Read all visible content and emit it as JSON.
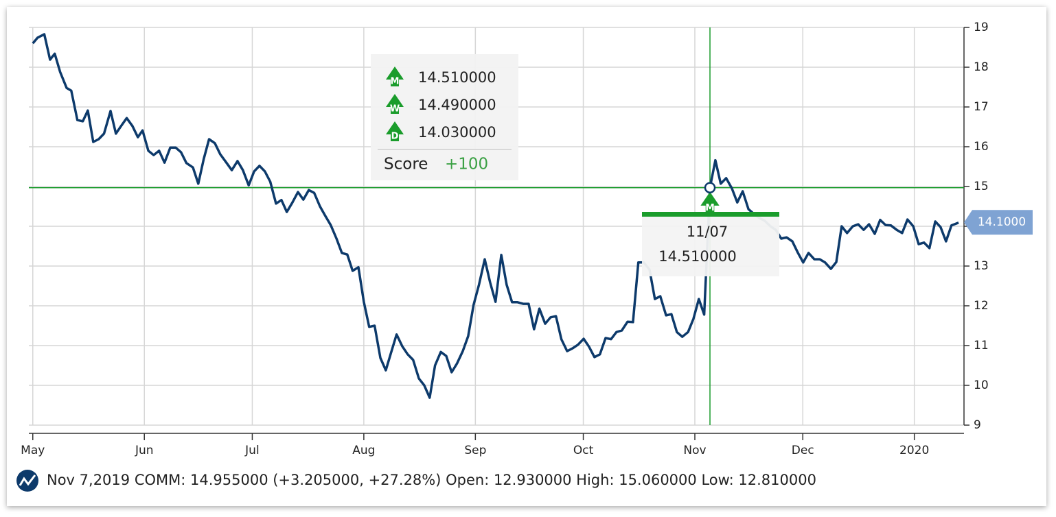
{
  "chart_data": {
    "type": "line",
    "x": [
      0,
      1.3,
      3.2,
      4.8,
      6.1,
      7.6,
      9.4,
      10.7,
      12.4,
      13.9,
      15.3,
      16.8,
      18.3,
      19.8,
      21.6,
      23.1,
      24.6,
      26.1,
      27.7,
      29.2,
      30.5,
      32.1,
      33.6,
      35.1,
      36.6,
      38.2,
      39.7,
      41.2,
      42.7,
      44.5,
      46.0,
      47.5,
      49.0,
      50.6,
      52.1,
      53.8,
      55.3,
      56.9,
      58.4,
      60.0,
      61.5,
      63.0,
      64.5,
      66.0,
      67.6,
      69.1,
      70.6,
      72.1,
      73.7,
      75.2,
      76.7,
      78.2,
      79.8,
      81.3,
      82.8,
      84.4,
      85.9,
      87.4,
      88.9,
      90.5,
      92.0,
      93.5,
      95.0,
      96.6,
      98.1,
      99.6,
      101.1,
      102.7,
      104.2,
      105.7,
      107.3,
      108.8,
      110.3,
      111.8,
      113.4,
      114.9,
      116.4,
      117.9,
      119.5,
      121.0,
      122.5,
      124.0,
      125.6,
      127.1,
      128.6,
      130.2,
      131.7,
      133.2,
      134.7,
      136.3,
      137.8,
      139.3,
      140.8,
      142.4,
      143.9,
      145.4,
      146.9,
      148.5,
      150.0,
      151.5,
      153.1,
      154.6,
      156.1,
      157.6,
      159.2,
      160.7,
      162.2,
      163.7,
      165.3,
      166.8,
      168.3,
      169.8,
      171.4,
      172.9,
      174.4,
      176.0,
      177.5,
      179.0,
      180.5,
      182.1,
      183.6,
      185.1,
      186.6,
      188.2,
      189.7,
      191.2,
      192.7,
      194.3,
      195.8,
      197.3,
      198.9,
      200.4,
      201.9,
      203.4,
      205.0,
      206.5,
      208.0,
      209.5,
      211.1,
      212.6,
      214.1,
      215.6,
      217.2,
      218.7,
      220.2,
      221.8,
      223.3,
      224.8,
      226.3,
      227.9,
      229.4,
      230.9,
      232.4,
      234.0,
      235.5,
      237.0,
      238.5,
      240.1,
      241.6,
      243.1,
      244.7,
      246.2,
      247.7,
      249.2,
      250.8,
      252.3,
      253.8,
      255.3,
      257.3
    ],
    "series": [
      {
        "color": "#0d3a6b",
        "values": [
          18.6,
          18.74,
          18.83,
          18.19,
          18.34,
          17.88,
          17.48,
          17.41,
          16.67,
          16.64,
          16.91,
          16.12,
          16.19,
          16.33,
          16.9,
          16.33,
          16.53,
          16.72,
          16.52,
          16.24,
          16.41,
          15.9,
          15.79,
          15.9,
          15.6,
          15.98,
          15.98,
          15.86,
          15.59,
          15.48,
          15.07,
          15.69,
          16.19,
          16.09,
          15.81,
          15.6,
          15.41,
          15.64,
          15.41,
          15.03,
          15.38,
          15.52,
          15.38,
          15.12,
          14.57,
          14.66,
          14.36,
          14.59,
          14.86,
          14.67,
          14.91,
          14.84,
          14.5,
          14.26,
          14.03,
          13.69,
          13.33,
          13.29,
          12.88,
          12.97,
          12.1,
          11.47,
          11.5,
          10.69,
          10.38,
          10.83,
          11.28,
          10.98,
          10.78,
          10.64,
          10.17,
          10.0,
          9.69,
          10.5,
          10.84,
          10.74,
          10.33,
          10.55,
          10.86,
          11.24,
          12.02,
          12.53,
          13.17,
          12.59,
          12.1,
          13.28,
          12.53,
          12.09,
          12.09,
          12.05,
          12.05,
          11.41,
          11.93,
          11.55,
          11.71,
          11.74,
          11.16,
          10.86,
          10.93,
          11.02,
          11.17,
          10.97,
          10.71,
          10.78,
          11.19,
          11.16,
          11.34,
          11.38,
          11.6,
          11.59,
          13.09,
          13.09,
          12.91,
          12.17,
          12.24,
          11.76,
          11.79,
          11.34,
          11.22,
          11.34,
          11.67,
          12.17,
          11.78,
          14.97,
          15.66,
          15.07,
          15.21,
          14.95,
          14.6,
          14.88,
          14.43,
          14.31,
          14.21,
          14.14,
          14.0,
          13.91,
          13.69,
          13.72,
          13.62,
          13.34,
          13.09,
          13.33,
          13.17,
          13.17,
          13.09,
          12.93,
          13.1,
          14.0,
          13.83,
          14.0,
          14.05,
          13.91,
          14.05,
          13.81,
          14.16,
          14.03,
          14.02,
          13.91,
          13.83,
          14.17,
          14.0,
          13.55,
          13.59,
          13.45,
          14.12,
          13.98,
          13.62,
          14.02,
          14.09
        ]
      }
    ],
    "xlim": [
      -1.1,
      258.8
    ],
    "xticks": [
      {
        "value": 0,
        "label": "May"
      },
      {
        "value": 31,
        "label": "Jun"
      },
      {
        "value": 61,
        "label": "Jul"
      },
      {
        "value": 92,
        "label": "Aug"
      },
      {
        "value": 123,
        "label": "Sep"
      },
      {
        "value": 153,
        "label": "Oct"
      },
      {
        "value": 184,
        "label": "Nov"
      },
      {
        "value": 214,
        "label": "Dec"
      },
      {
        "value": 245,
        "label": "2020"
      }
    ],
    "ylim": [
      9,
      19
    ],
    "yticks": [
      9,
      10,
      11,
      12,
      13,
      14,
      15,
      16,
      17,
      18,
      19
    ],
    "grid": true,
    "crosshair": {
      "x": 188.2,
      "y": 14.97,
      "color": "#1a9c2b"
    },
    "last_value": {
      "value": 14.1,
      "label": "14.1000"
    },
    "signal_panel": {
      "items": [
        {
          "letter": "M",
          "value": "14.510000"
        },
        {
          "letter": "W",
          "value": "14.490000"
        },
        {
          "letter": "D",
          "value": "14.030000"
        }
      ],
      "score_label": "Score",
      "score": "+100"
    },
    "tooltip": {
      "letter": "M",
      "date": "11/07",
      "value": "14.510000"
    },
    "status": "Nov 7,2019 COMM: 14.955000 (+3.205000, +27.28%) Open: 12.930000 High: 15.060000 Low: 12.810000"
  }
}
